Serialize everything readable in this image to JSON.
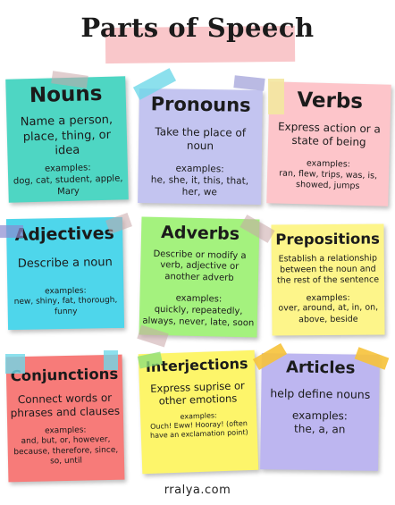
{
  "title": "Parts of Speech",
  "credit": "rralya.com",
  "cards": {
    "nouns": {
      "heading": "Nouns",
      "description": "Name a person, place, thing, or idea",
      "examples_label": "examples:",
      "examples": "dog, cat, student, apple, Mary"
    },
    "pronouns": {
      "heading": "Pronouns",
      "description": "Take the place of noun",
      "examples_label": "examples:",
      "examples": "he, she, it, this, that, her, we"
    },
    "verbs": {
      "heading": "Verbs",
      "description": "Express action or a state of being",
      "examples_label": "examples:",
      "examples": "ran, flew, trips, was, is, showed, jumps"
    },
    "adjectives": {
      "heading": "Adjectives",
      "description": "Describe a noun",
      "examples_label": "examples:",
      "examples": "new, shiny, fat, thorough, funny"
    },
    "adverbs": {
      "heading": "Adverbs",
      "description": "Describe or modify a verb, adjective or another adverb",
      "examples_label": "examples:",
      "examples": "quickly, repeatedly, always, never, late, soon"
    },
    "prepositions": {
      "heading": "Prepositions",
      "description": "Establish a relationship between the noun and the rest of the sentence",
      "examples_label": "examples:",
      "examples": "over, around, at, in, on, above, beside"
    },
    "conjunctions": {
      "heading": "Conjunctions",
      "description": "Connect words or phrases and clauses",
      "examples_label": "examples:",
      "examples": "and, but, or, however, because, therefore, since, so, until"
    },
    "interjections": {
      "heading": "Interjections",
      "description": "Express suprise or other emotions",
      "examples_label": "examples:",
      "examples": "Ouch! Eww! Hooray! (often have an exclamation point)"
    },
    "articles": {
      "heading": "Articles",
      "description": "help define nouns",
      "examples_label": "examples:",
      "examples": "the, a, an"
    }
  }
}
